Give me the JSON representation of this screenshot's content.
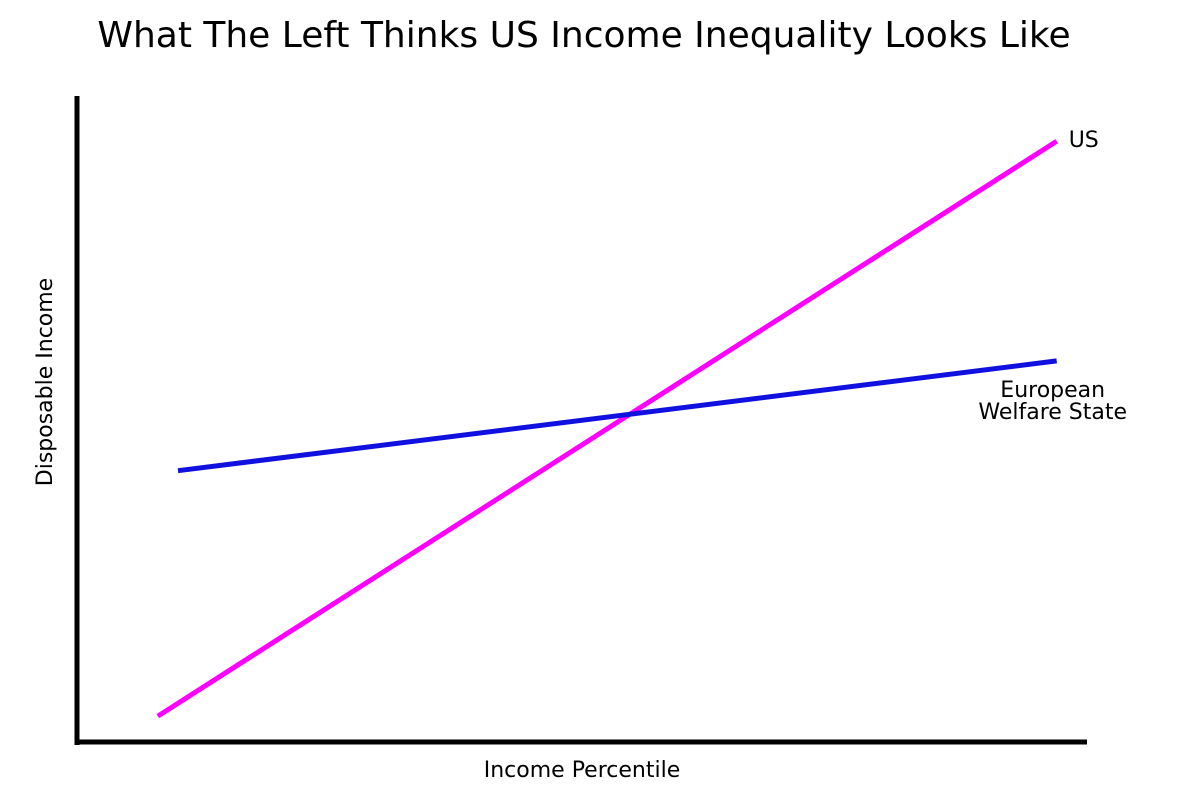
{
  "chart_data": {
    "type": "line",
    "title": "What The Left Thinks US Income Inequality Looks Like",
    "xlabel": "Income Percentile",
    "ylabel": "Disposable Income",
    "grid": false,
    "legend": "none",
    "series": [
      {
        "name": "US",
        "label_lines": [
          "US"
        ],
        "color": "#ff00ff",
        "x": [
          8,
          97
        ],
        "y": [
          4,
          93
        ]
      },
      {
        "name": "European Welfare State",
        "label_lines": [
          "European",
          "Welfare State"
        ],
        "color": "#1010e0",
        "x": [
          10,
          97
        ],
        "y": [
          42,
          59
        ]
      }
    ]
  }
}
